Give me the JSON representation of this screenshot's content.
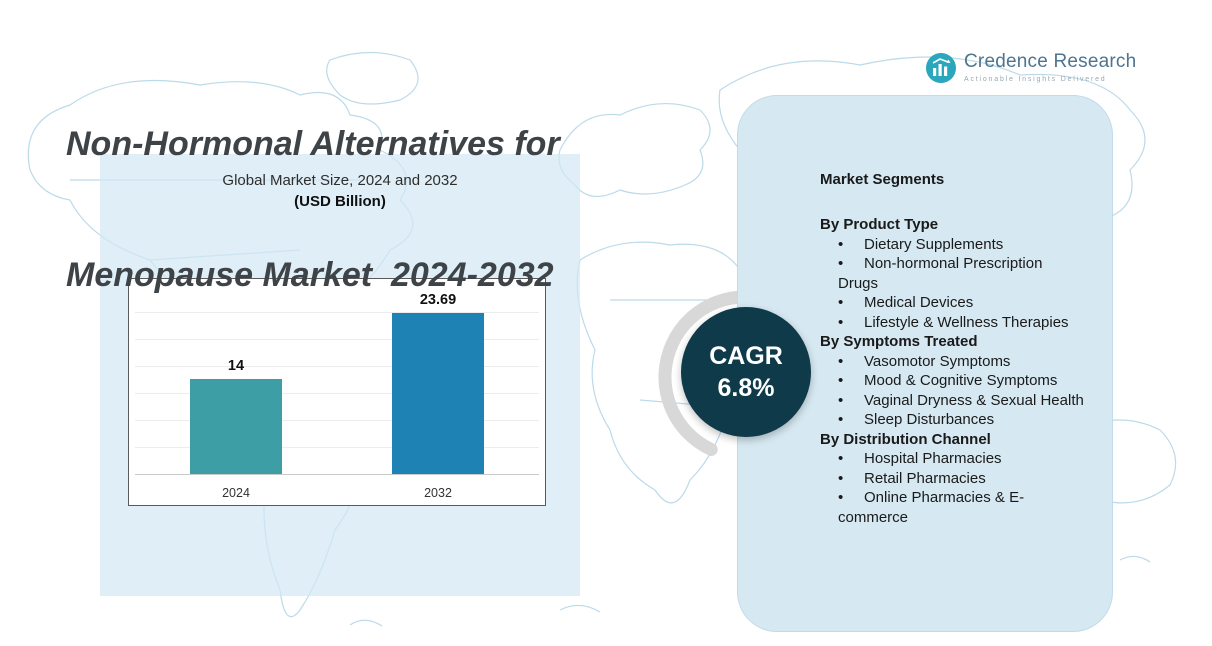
{
  "title": {
    "line1": "Non-Hormonal Alternatives for",
    "line2": "Menopause Market  2024-2032"
  },
  "logo": {
    "name": "Credence Research",
    "tagline": "Actionable Insights Delivered"
  },
  "cagr": {
    "label": "CAGR",
    "value": "6.8%"
  },
  "chart_data": {
    "type": "bar",
    "title": "Global Market Size, 2024 and 2032",
    "subtitle": "(USD Billion)",
    "categories": [
      "2024",
      "2032"
    ],
    "values": [
      14,
      23.69
    ],
    "bar_colors": [
      "#3e9ea6",
      "#1e83b4"
    ],
    "ylim": [
      0,
      27
    ],
    "grid": true,
    "legend": false,
    "xlabel": "",
    "ylabel": ""
  },
  "segments": {
    "heading": "Market Segments",
    "sections": [
      {
        "title": "By Product Type",
        "items": [
          "Dietary Supplements",
          "Non-hormonal Prescription Drugs",
          "Medical Devices",
          "Lifestyle & Wellness Therapies"
        ]
      },
      {
        "title": "By Symptoms Treated",
        "items": [
          "Vasomotor Symptoms",
          "Mood & Cognitive Symptoms",
          "Vaginal Dryness & Sexual Health",
          "Sleep Disturbances"
        ]
      },
      {
        "title": "By Distribution Channel",
        "items": [
          "Hospital Pharmacies",
          "Retail Pharmacies",
          "Online Pharmacies & E-commerce"
        ]
      }
    ]
  },
  "colors": {
    "accent_teal": "#2aa6bd",
    "bar_2024": "#3e9ea6",
    "bar_2032": "#1e83b4",
    "cagr_circle": "#0e3a4a",
    "panel_bg": "#d6e8f2",
    "map_line": "#b5d6e7",
    "title_text": "#3e4347"
  }
}
